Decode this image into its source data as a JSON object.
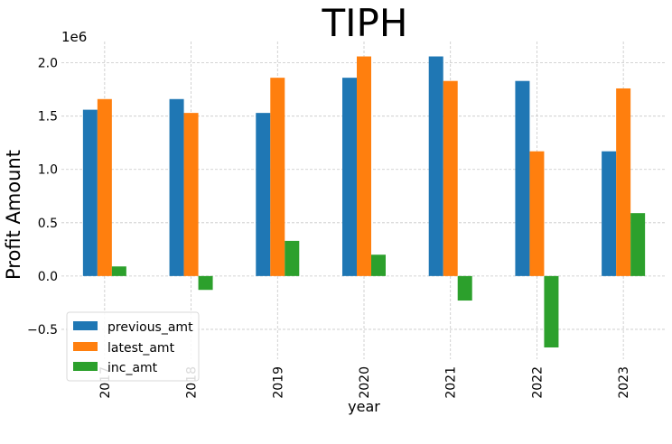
{
  "chart_data": {
    "type": "bar",
    "title": "TIPH",
    "xlabel": "year",
    "ylabel": "Profit Amount",
    "y_offset_label": "1e6",
    "categories": [
      "2017",
      "2018",
      "2019",
      "2020",
      "2021",
      "2022",
      "2023"
    ],
    "series": [
      {
        "name": "previous_amt",
        "color": "#1f77b4",
        "values": [
          1560000,
          1660000,
          1530000,
          1860000,
          2060000,
          1830000,
          1170000
        ]
      },
      {
        "name": "latest_amt",
        "color": "#ff7f0e",
        "values": [
          1660000,
          1530000,
          1860000,
          2060000,
          1830000,
          1170000,
          1760000
        ]
      },
      {
        "name": "inc_amt",
        "color": "#2ca02c",
        "values": [
          90000,
          -130000,
          330000,
          200000,
          -230000,
          -670000,
          590000
        ]
      }
    ],
    "ylim": [
      -0.78,
      2.2
    ],
    "yticks": [
      -0.5,
      0.0,
      0.5,
      1.0,
      1.5,
      2.0
    ],
    "ytick_labels": [
      "−0.5",
      "0.0",
      "0.5",
      "1.0",
      "1.5",
      "2.0"
    ],
    "grid": true,
    "legend_position": "lower-left"
  }
}
